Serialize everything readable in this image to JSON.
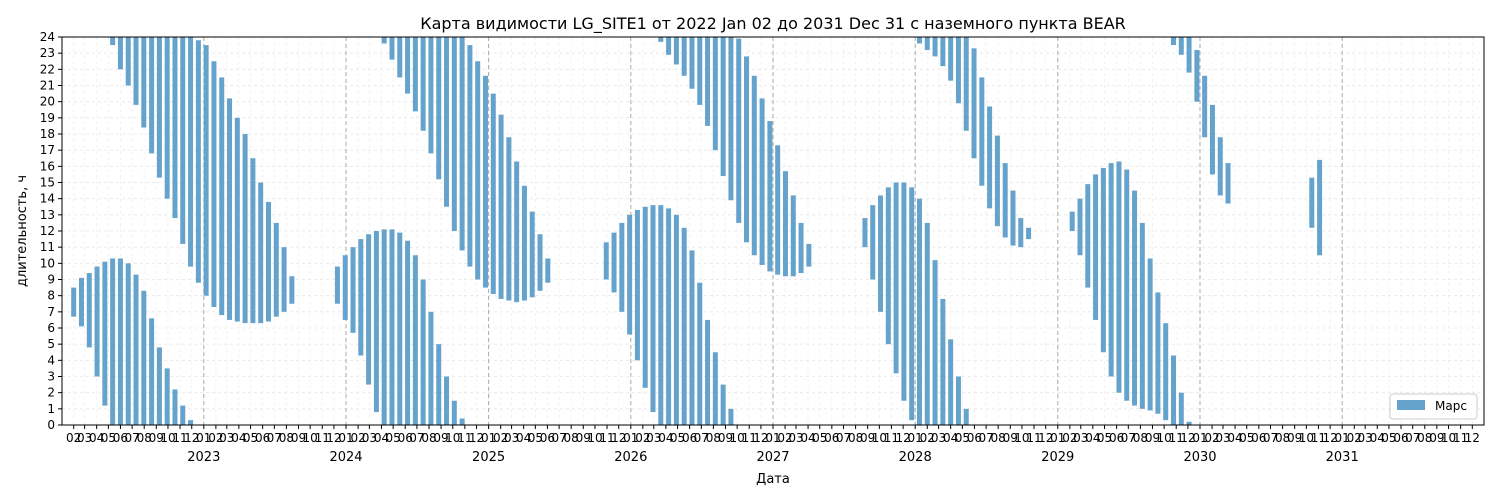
{
  "chart_data": {
    "type": "bar",
    "title": "Карта видимости LG_SITE1 от 2022 Jan 02 до 2031 Dec 31 с наземного пункта BEAR",
    "xlabel": "Дата",
    "ylabel": "длительность, ч",
    "xlim": [
      "2022-01-02",
      "2031-12-31"
    ],
    "ylim": [
      0,
      24
    ],
    "y_ticks": [
      0,
      1,
      2,
      3,
      4,
      5,
      6,
      7,
      8,
      9,
      10,
      11,
      12,
      13,
      14,
      15,
      16,
      17,
      18,
      19,
      20,
      21,
      22,
      23,
      24
    ],
    "month_tick_labels": [
      "02",
      "03",
      "04",
      "05",
      "06",
      "07",
      "08",
      "09",
      "10",
      "11",
      "12"
    ],
    "year_labels": [
      "2023",
      "2024",
      "2025",
      "2026",
      "2027",
      "2028",
      "2029",
      "2030",
      "2031"
    ],
    "year_tick_label": "01",
    "grid": true,
    "legend": {
      "position": "lower-right",
      "entries": [
        "Марс"
      ]
    },
    "series": [
      {
        "name": "Марс",
        "color": "#66a3cc",
        "note_on_points": "Each point is [date, visibility_start_hour, visibility_end_hour]; windows crossing midnight are shown as two segments (start–24 and 0–end).",
        "sample_step_days": 20,
        "points": [
          [
            "2022-02-01",
            6.7,
            8.5
          ],
          [
            "2022-02-21",
            6.1,
            9.1
          ],
          [
            "2022-03-13",
            4.8,
            9.4
          ],
          [
            "2022-04-02",
            3.0,
            9.8
          ],
          [
            "2022-04-22",
            1.2,
            10.1
          ],
          [
            "2022-05-12",
            23.5,
            10.3
          ],
          [
            "2022-06-01",
            22.0,
            10.3
          ],
          [
            "2022-06-21",
            21.0,
            10.0
          ],
          [
            "2022-07-11",
            19.8,
            9.3
          ],
          [
            "2022-07-31",
            18.4,
            8.3
          ],
          [
            "2022-08-20",
            16.8,
            6.6
          ],
          [
            "2022-09-09",
            15.3,
            4.8
          ],
          [
            "2022-09-29",
            14.0,
            3.5
          ],
          [
            "2022-10-19",
            12.8,
            2.2
          ],
          [
            "2022-11-08",
            11.2,
            1.2
          ],
          [
            "2022-11-28",
            9.8,
            0.3
          ],
          [
            "2022-12-18",
            8.8,
            23.8
          ],
          [
            "2023-01-07",
            8.0,
            23.5
          ],
          [
            "2023-01-27",
            7.3,
            22.5
          ],
          [
            "2023-02-16",
            6.8,
            21.5
          ],
          [
            "2023-03-08",
            6.5,
            20.2
          ],
          [
            "2023-03-28",
            6.4,
            19.0
          ],
          [
            "2023-04-17",
            6.3,
            18.0
          ],
          [
            "2023-05-07",
            6.3,
            16.5
          ],
          [
            "2023-05-27",
            6.3,
            15.0
          ],
          [
            "2023-06-16",
            6.4,
            13.8
          ],
          [
            "2023-07-06",
            6.7,
            12.5
          ],
          [
            "2023-07-26",
            7.0,
            11.0
          ],
          [
            "2023-08-15",
            7.5,
            9.2
          ],
          [
            "2023-12-10",
            7.5,
            9.8
          ],
          [
            "2023-12-30",
            6.5,
            10.5
          ],
          [
            "2024-01-19",
            5.7,
            11.0
          ],
          [
            "2024-02-08",
            4.3,
            11.5
          ],
          [
            "2024-02-28",
            2.5,
            11.8
          ],
          [
            "2024-03-19",
            0.8,
            12.0
          ],
          [
            "2024-04-08",
            23.6,
            12.1
          ],
          [
            "2024-04-28",
            22.6,
            12.1
          ],
          [
            "2024-05-18",
            21.5,
            11.9
          ],
          [
            "2024-06-07",
            20.5,
            11.4
          ],
          [
            "2024-06-27",
            19.4,
            10.5
          ],
          [
            "2024-07-17",
            18.2,
            9.0
          ],
          [
            "2024-08-06",
            16.8,
            7.0
          ],
          [
            "2024-08-26",
            15.2,
            5.0
          ],
          [
            "2024-09-15",
            13.5,
            3.0
          ],
          [
            "2024-10-05",
            12.0,
            1.5
          ],
          [
            "2024-10-25",
            10.8,
            0.4
          ],
          [
            "2024-11-14",
            9.8,
            23.5
          ],
          [
            "2024-12-04",
            9.0,
            22.5
          ],
          [
            "2024-12-24",
            8.5,
            21.6
          ],
          [
            "2025-01-13",
            8.1,
            20.5
          ],
          [
            "2025-02-02",
            7.8,
            19.2
          ],
          [
            "2025-02-22",
            7.7,
            17.8
          ],
          [
            "2025-03-14",
            7.6,
            16.3
          ],
          [
            "2025-04-03",
            7.7,
            14.8
          ],
          [
            "2025-04-23",
            7.9,
            13.2
          ],
          [
            "2025-05-13",
            8.3,
            11.8
          ],
          [
            "2025-06-02",
            8.8,
            10.3
          ],
          [
            "2025-10-30",
            9.0,
            11.3
          ],
          [
            "2025-11-19",
            8.2,
            11.9
          ],
          [
            "2025-12-09",
            7.0,
            12.5
          ],
          [
            "2025-12-29",
            5.6,
            13.0
          ],
          [
            "2026-01-18",
            4.0,
            13.3
          ],
          [
            "2026-02-07",
            2.3,
            13.5
          ],
          [
            "2026-02-27",
            0.8,
            13.6
          ],
          [
            "2026-03-19",
            23.7,
            13.6
          ],
          [
            "2026-04-08",
            22.9,
            13.4
          ],
          [
            "2026-04-28",
            22.3,
            13.0
          ],
          [
            "2026-05-18",
            21.6,
            12.2
          ],
          [
            "2026-06-07",
            20.8,
            10.8
          ],
          [
            "2026-06-27",
            19.8,
            8.8
          ],
          [
            "2026-07-17",
            18.5,
            6.5
          ],
          [
            "2026-08-06",
            17.0,
            4.5
          ],
          [
            "2026-08-26",
            15.4,
            2.5
          ],
          [
            "2026-09-15",
            13.9,
            1.0
          ],
          [
            "2026-10-05",
            12.5,
            23.9
          ],
          [
            "2026-10-25",
            11.3,
            22.8
          ],
          [
            "2026-11-14",
            10.5,
            21.6
          ],
          [
            "2026-12-04",
            9.9,
            20.2
          ],
          [
            "2026-12-24",
            9.5,
            18.8
          ],
          [
            "2027-01-13",
            9.3,
            17.3
          ],
          [
            "2027-02-02",
            9.2,
            15.7
          ],
          [
            "2027-02-22",
            9.2,
            14.2
          ],
          [
            "2027-03-14",
            9.4,
            12.5
          ],
          [
            "2027-04-03",
            9.8,
            11.2
          ],
          [
            "2027-08-25",
            11.0,
            12.8
          ],
          [
            "2027-09-14",
            9.0,
            13.6
          ],
          [
            "2027-10-04",
            7.0,
            14.2
          ],
          [
            "2027-10-24",
            5.0,
            14.7
          ],
          [
            "2027-11-13",
            3.2,
            15.0
          ],
          [
            "2027-12-03",
            1.5,
            15.0
          ],
          [
            "2027-12-23",
            0.3,
            14.7
          ],
          [
            "2028-01-12",
            23.6,
            14.0
          ],
          [
            "2028-02-01",
            23.2,
            12.5
          ],
          [
            "2028-02-21",
            22.8,
            10.2
          ],
          [
            "2028-03-12",
            22.2,
            7.8
          ],
          [
            "2028-04-01",
            21.3,
            5.3
          ],
          [
            "2028-04-21",
            19.9,
            3.0
          ],
          [
            "2028-05-11",
            18.2,
            1.0
          ],
          [
            "2028-05-31",
            16.5,
            23.3
          ],
          [
            "2028-06-20",
            14.8,
            21.5
          ],
          [
            "2028-07-10",
            13.4,
            19.7
          ],
          [
            "2028-07-30",
            12.3,
            17.9
          ],
          [
            "2028-08-19",
            11.6,
            16.2
          ],
          [
            "2028-09-08",
            11.1,
            14.5
          ],
          [
            "2028-09-28",
            11.0,
            12.8
          ],
          [
            "2028-10-18",
            11.5,
            12.2
          ],
          [
            "2029-02-07",
            12.0,
            13.2
          ],
          [
            "2029-02-27",
            10.5,
            14.0
          ],
          [
            "2029-03-19",
            8.5,
            14.9
          ],
          [
            "2029-04-08",
            6.5,
            15.5
          ],
          [
            "2029-04-28",
            4.5,
            15.9
          ],
          [
            "2029-05-18",
            3.0,
            16.2
          ],
          [
            "2029-06-07",
            2.0,
            16.3
          ],
          [
            "2029-06-27",
            1.5,
            15.8
          ],
          [
            "2029-07-17",
            1.2,
            14.5
          ],
          [
            "2029-08-06",
            1.0,
            12.5
          ],
          [
            "2029-08-26",
            0.9,
            10.3
          ],
          [
            "2029-09-15",
            0.7,
            8.2
          ],
          [
            "2029-10-05",
            0.3,
            6.3
          ],
          [
            "2029-10-25",
            23.5,
            4.3
          ],
          [
            "2029-11-14",
            22.9,
            2.0
          ],
          [
            "2029-12-04",
            21.8,
            0.2
          ],
          [
            "2029-12-24",
            20.0,
            23.2
          ],
          [
            "2030-01-13",
            17.8,
            21.6
          ],
          [
            "2030-02-02",
            15.5,
            19.8
          ],
          [
            "2030-02-22",
            14.2,
            17.8
          ],
          [
            "2030-03-14",
            13.7,
            16.2
          ],
          [
            "2030-10-15",
            12.2,
            15.3
          ],
          [
            "2030-11-04",
            10.5,
            16.4
          ]
        ]
      }
    ]
  }
}
